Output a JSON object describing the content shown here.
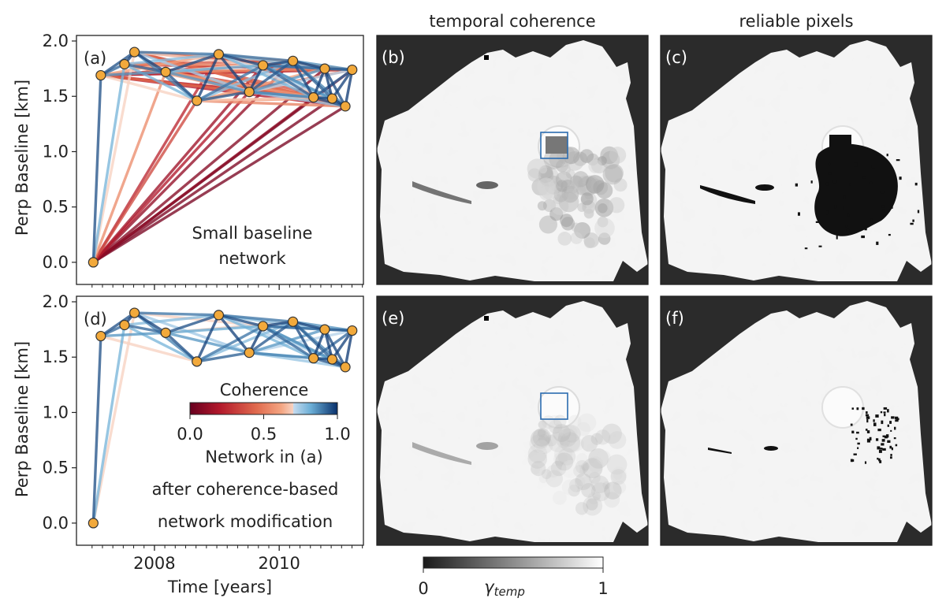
{
  "chart_data": [
    {
      "id": "a",
      "type": "network",
      "panel_label": "(a)",
      "ylabel": "Perp Baseline [km]",
      "xlabel": "",
      "xlim": [
        2006.75,
        2011.35
      ],
      "ylim": [
        -0.2,
        2.05
      ],
      "yticks": [
        0.0,
        0.5,
        1.0,
        1.5,
        2.0
      ],
      "ytick_labels": [
        "0.0",
        "0.5",
        "1.0",
        "1.5",
        "2.0"
      ],
      "xticks": [
        2008,
        2010
      ],
      "xtick_labels": [
        "",
        ""
      ],
      "annotation_lines": [
        "Small baseline",
        "network"
      ],
      "nodes": [
        {
          "t": 2007.02,
          "b": 0.0
        },
        {
          "t": 2007.14,
          "b": 1.69
        },
        {
          "t": 2007.52,
          "b": 1.79
        },
        {
          "t": 2007.68,
          "b": 1.9
        },
        {
          "t": 2008.18,
          "b": 1.72
        },
        {
          "t": 2008.68,
          "b": 1.46
        },
        {
          "t": 2009.03,
          "b": 1.88
        },
        {
          "t": 2009.52,
          "b": 1.54
        },
        {
          "t": 2009.74,
          "b": 1.78
        },
        {
          "t": 2010.22,
          "b": 1.82
        },
        {
          "t": 2010.55,
          "b": 1.49
        },
        {
          "t": 2010.73,
          "b": 1.75
        },
        {
          "t": 2010.85,
          "b": 1.48
        },
        {
          "t": 2011.06,
          "b": 1.41
        },
        {
          "t": 2011.17,
          "b": 1.74
        }
      ],
      "edges": [
        [
          0,
          1,
          0.95
        ],
        [
          0,
          2,
          0.8
        ],
        [
          0,
          3,
          0.7
        ],
        [
          0,
          4,
          0.55
        ],
        [
          0,
          5,
          0.35
        ],
        [
          0,
          6,
          0.25
        ],
        [
          0,
          7,
          0.2
        ],
        [
          0,
          8,
          0.15
        ],
        [
          0,
          9,
          0.12
        ],
        [
          0,
          10,
          0.1
        ],
        [
          0,
          11,
          0.08
        ],
        [
          0,
          12,
          0.06
        ],
        [
          0,
          13,
          0.05
        ],
        [
          0,
          14,
          0.04
        ],
        [
          1,
          2,
          0.92
        ],
        [
          1,
          3,
          0.95
        ],
        [
          1,
          4,
          0.85
        ],
        [
          1,
          5,
          0.7
        ],
        [
          1,
          6,
          0.6
        ],
        [
          1,
          7,
          0.45
        ],
        [
          1,
          8,
          0.4
        ],
        [
          1,
          9,
          0.3
        ],
        [
          1,
          10,
          0.28
        ],
        [
          1,
          11,
          0.25
        ],
        [
          1,
          12,
          0.22
        ],
        [
          1,
          13,
          0.2
        ],
        [
          1,
          14,
          0.18
        ],
        [
          2,
          3,
          0.98
        ],
        [
          2,
          4,
          0.92
        ],
        [
          2,
          5,
          0.8
        ],
        [
          2,
          6,
          0.78
        ],
        [
          2,
          7,
          0.6
        ],
        [
          2,
          8,
          0.55
        ],
        [
          2,
          9,
          0.4
        ],
        [
          2,
          10,
          0.35
        ],
        [
          2,
          11,
          0.32
        ],
        [
          2,
          12,
          0.3
        ],
        [
          2,
          13,
          0.28
        ],
        [
          2,
          14,
          0.26
        ],
        [
          3,
          4,
          0.97
        ],
        [
          3,
          5,
          0.88
        ],
        [
          3,
          6,
          0.9
        ],
        [
          3,
          7,
          0.75
        ],
        [
          3,
          8,
          0.7
        ],
        [
          3,
          9,
          0.55
        ],
        [
          3,
          10,
          0.45
        ],
        [
          3,
          11,
          0.42
        ],
        [
          3,
          12,
          0.38
        ],
        [
          3,
          13,
          0.35
        ],
        [
          3,
          14,
          0.33
        ],
        [
          4,
          5,
          0.95
        ],
        [
          4,
          6,
          0.95
        ],
        [
          4,
          7,
          0.85
        ],
        [
          4,
          8,
          0.82
        ],
        [
          4,
          9,
          0.7
        ],
        [
          4,
          10,
          0.58
        ],
        [
          4,
          11,
          0.55
        ],
        [
          4,
          12,
          0.5
        ],
        [
          4,
          13,
          0.45
        ],
        [
          4,
          14,
          0.42
        ],
        [
          5,
          6,
          0.97
        ],
        [
          5,
          7,
          0.93
        ],
        [
          5,
          8,
          0.9
        ],
        [
          5,
          9,
          0.78
        ],
        [
          5,
          10,
          0.68
        ],
        [
          5,
          11,
          0.62
        ],
        [
          5,
          12,
          0.58
        ],
        [
          5,
          13,
          0.52
        ],
        [
          5,
          14,
          0.48
        ],
        [
          6,
          7,
          0.97
        ],
        [
          6,
          8,
          0.96
        ],
        [
          6,
          9,
          0.9
        ],
        [
          6,
          10,
          0.8
        ],
        [
          6,
          11,
          0.78
        ],
        [
          6,
          12,
          0.72
        ],
        [
          6,
          13,
          0.68
        ],
        [
          6,
          14,
          0.62
        ],
        [
          7,
          8,
          0.98
        ],
        [
          7,
          9,
          0.94
        ],
        [
          7,
          10,
          0.88
        ],
        [
          7,
          11,
          0.85
        ],
        [
          7,
          12,
          0.8
        ],
        [
          7,
          13,
          0.76
        ],
        [
          7,
          14,
          0.72
        ],
        [
          8,
          9,
          0.97
        ],
        [
          8,
          10,
          0.92
        ],
        [
          8,
          11,
          0.92
        ],
        [
          8,
          12,
          0.86
        ],
        [
          8,
          13,
          0.82
        ],
        [
          8,
          14,
          0.8
        ],
        [
          9,
          10,
          0.96
        ],
        [
          9,
          11,
          0.97
        ],
        [
          9,
          12,
          0.93
        ],
        [
          9,
          13,
          0.88
        ],
        [
          9,
          14,
          0.86
        ],
        [
          10,
          11,
          0.98
        ],
        [
          10,
          12,
          0.97
        ],
        [
          10,
          13,
          0.95
        ],
        [
          10,
          14,
          0.92
        ],
        [
          11,
          12,
          0.98
        ],
        [
          11,
          13,
          0.96
        ],
        [
          11,
          14,
          0.95
        ],
        [
          12,
          13,
          0.98
        ],
        [
          12,
          14,
          0.97
        ],
        [
          13,
          14,
          0.98
        ]
      ]
    },
    {
      "id": "d",
      "type": "network",
      "panel_label": "(d)",
      "ylabel": "Perp Baseline [km]",
      "xlabel": "Time [years]",
      "xlim": [
        2006.75,
        2011.35
      ],
      "ylim": [
        -0.2,
        2.05
      ],
      "yticks": [
        0.0,
        0.5,
        1.0,
        1.5,
        2.0
      ],
      "ytick_labels": [
        "0.0",
        "0.5",
        "1.0",
        "1.5",
        "2.0"
      ],
      "xticks": [
        2008,
        2010
      ],
      "xtick_labels": [
        "2008",
        "2010"
      ],
      "annotation_lines": [
        "Network in (a)",
        "after coherence-based",
        "network modification"
      ],
      "colorbar": {
        "title": "Coherence",
        "range": [
          0.0,
          1.0
        ],
        "ticks": [
          0.0,
          0.5,
          1.0
        ],
        "tick_labels": [
          "0.0",
          "0.5",
          "1.0"
        ],
        "colormap": "RdBu"
      },
      "coherence_threshold": 0.7
    },
    {
      "id": "b",
      "type": "heatmap",
      "panel_label": "(b)",
      "title": "temporal coherence",
      "box": true
    },
    {
      "id": "c",
      "type": "heatmap",
      "panel_label": "(c)",
      "title": "reliable pixels"
    },
    {
      "id": "e",
      "type": "heatmap",
      "panel_label": "(e)",
      "box": true
    },
    {
      "id": "f",
      "type": "heatmap",
      "panel_label": "(f)"
    },
    {
      "id": "gamma-colorbar",
      "type": "colorbar",
      "range": [
        0,
        1
      ],
      "ticks": [
        0,
        1
      ],
      "tick_labels": [
        "0",
        "1"
      ],
      "label_main": "γ",
      "label_sub": "temp",
      "colormap": "gray"
    }
  ]
}
